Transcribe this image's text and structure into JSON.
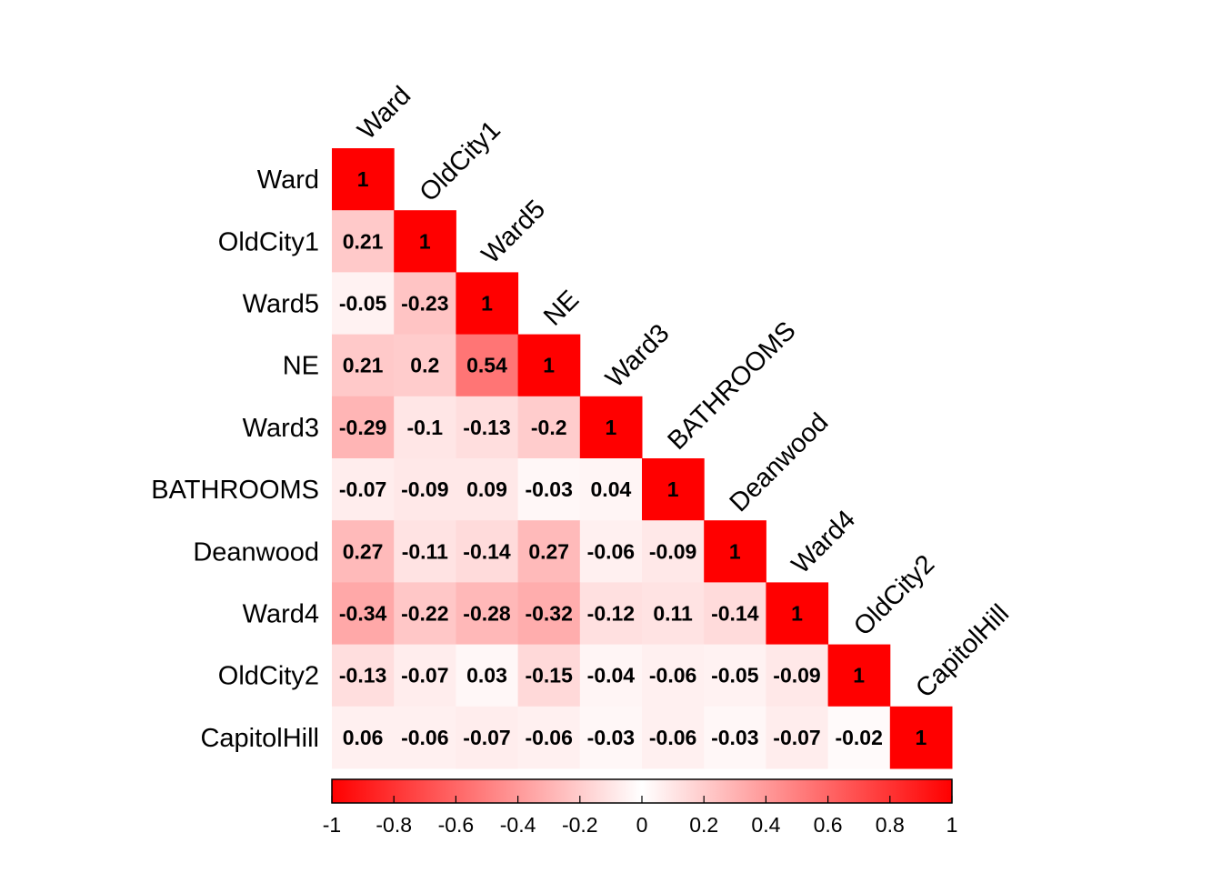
{
  "chart_data": {
    "type": "heatmap",
    "subtype": "correlation-matrix-lower-triangle",
    "variables": [
      "Ward",
      "OldCity1",
      "Ward5",
      "NE",
      "Ward3",
      "BATHROOMS",
      "Deanwood",
      "Ward4",
      "OldCity2",
      "CapitolHill"
    ],
    "matrix": [
      [
        1
      ],
      [
        0.21,
        1
      ],
      [
        -0.05,
        -0.23,
        1
      ],
      [
        0.21,
        0.2,
        0.54,
        1
      ],
      [
        -0.29,
        -0.1,
        -0.13,
        -0.2,
        1
      ],
      [
        -0.07,
        -0.09,
        0.09,
        -0.03,
        0.04,
        1
      ],
      [
        0.27,
        -0.11,
        -0.14,
        0.27,
        -0.06,
        -0.09,
        1
      ],
      [
        -0.34,
        -0.22,
        -0.28,
        -0.32,
        -0.12,
        0.11,
        -0.14,
        1
      ],
      [
        -0.13,
        -0.07,
        0.03,
        -0.15,
        -0.04,
        -0.06,
        -0.05,
        -0.09,
        1
      ],
      [
        0.06,
        -0.06,
        -0.07,
        -0.06,
        -0.03,
        -0.06,
        -0.03,
        -0.07,
        -0.02,
        1
      ]
    ],
    "color_scale": {
      "range": [
        -1,
        1
      ],
      "low_color": "#ff0000",
      "mid_color": "#ffffff",
      "high_color": "#ff0000"
    },
    "colorbar_ticks": [
      "-1",
      "-0.8",
      "-0.6",
      "-0.4",
      "-0.2",
      "0",
      "0.2",
      "0.4",
      "0.6",
      "0.8",
      "1"
    ],
    "colorbar_placement": "bottom",
    "grid": false
  }
}
